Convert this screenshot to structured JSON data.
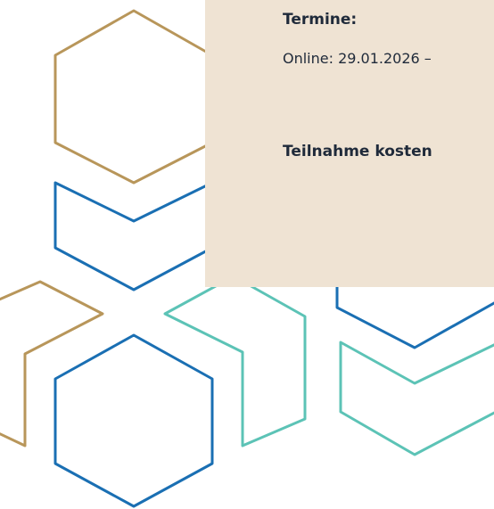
{
  "info": {
    "dates_label": "Termine:",
    "dates_text": "Online: 29.01.2026 –",
    "cost_label": "Teilnahme kosten"
  }
}
